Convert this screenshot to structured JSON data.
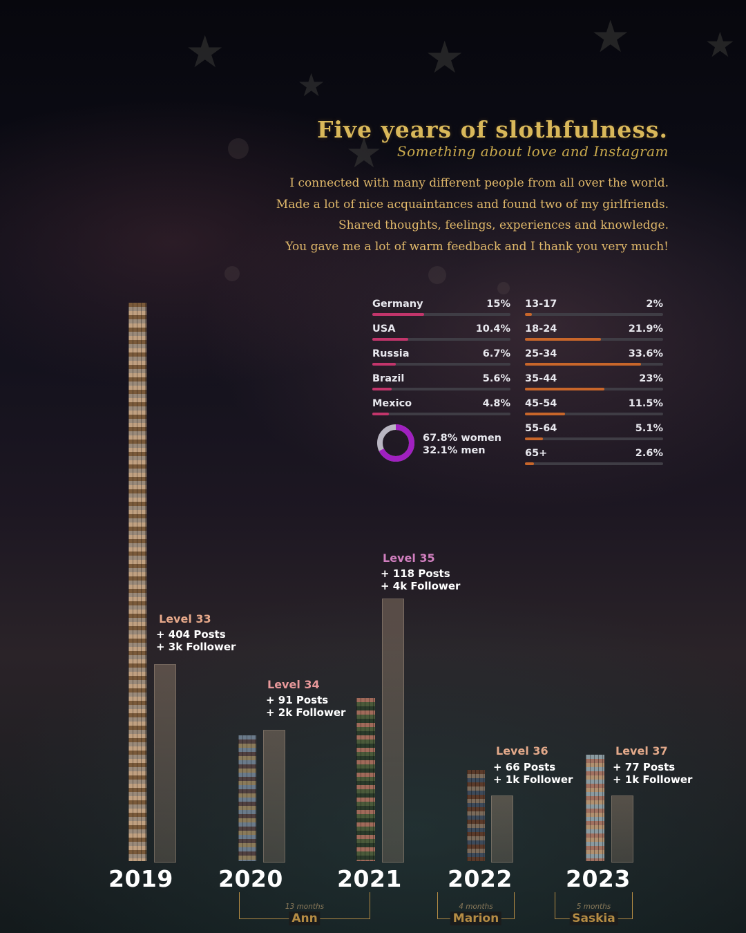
{
  "header": {
    "title": "Five years of slothfulness.",
    "subtitle": "Something about love and Instagram",
    "intro_lines": [
      "I connected with many different people from all over the world.",
      "Made a lot of nice acquaintances and found two of my girlfriends.",
      "Shared thoughts, feelings, experiences and knowledge.",
      "You gave me a lot of warm feedback and I thank you very much!"
    ]
  },
  "audience": {
    "countries": [
      {
        "name": "Germany",
        "value": "15%",
        "share": 15.0
      },
      {
        "name": "USA",
        "value": "10.4%",
        "share": 10.4
      },
      {
        "name": "Russia",
        "value": "6.7%",
        "share": 6.7
      },
      {
        "name": "Brazil",
        "value": "5.6%",
        "share": 5.6
      },
      {
        "name": "Mexico",
        "value": "4.8%",
        "share": 4.8
      }
    ],
    "ages": [
      {
        "name": "13-17",
        "value": "2%",
        "share": 2.0
      },
      {
        "name": "18-24",
        "value": "21.9%",
        "share": 21.9
      },
      {
        "name": "25-34",
        "value": "33.6%",
        "share": 33.6
      },
      {
        "name": "35-44",
        "value": "23%",
        "share": 23.0
      },
      {
        "name": "45-54",
        "value": "11.5%",
        "share": 11.5
      },
      {
        "name": "55-64",
        "value": "5.1%",
        "share": 5.1
      },
      {
        "name": "65+",
        "value": "2.6%",
        "share": 2.6
      }
    ],
    "gender": {
      "women": "67.8% women",
      "men": "32.1% men",
      "women_share": 67.8,
      "men_share": 32.1
    },
    "colors": {
      "country_fill": "#c2356b",
      "age_fill": "#c8662a",
      "donut_women": "#a020c0",
      "donut_men": "#b9b6c2",
      "track": "#3f3d45"
    }
  },
  "chart_data": {
    "type": "bar",
    "categories": [
      "2019",
      "2020",
      "2021",
      "2022",
      "2023"
    ],
    "series": [
      {
        "values": [
          404,
          91,
          118,
          66,
          77
        ]
      },
      {
        "values": [
          3,
          2,
          4,
          1,
          1
        ]
      }
    ],
    "levels": [
      "Level 33",
      "Level 34",
      "Level 35",
      "Level 36",
      "Level 37"
    ],
    "posts_labels": [
      "+ 404 Posts",
      "+ 91 Posts",
      "+ 118 Posts",
      "+ 66 Posts",
      "+ 77 Posts"
    ],
    "follower_labels": [
      "+ 3k Follower",
      "+ 2k Follower",
      "+ 4k Follower",
      "+ 1k Follower",
      "+ 1k Follower"
    ],
    "level_colors": [
      "#e7a98a",
      "#e8989a",
      "#d17fbf",
      "#e3a98a",
      "#e3a98a"
    ],
    "relationships": [
      {
        "duration": "13 months",
        "name": "Ann"
      },
      {
        "duration": "4 months",
        "name": "Marion"
      },
      {
        "duration": "5 months",
        "name": "Saskia"
      }
    ]
  }
}
